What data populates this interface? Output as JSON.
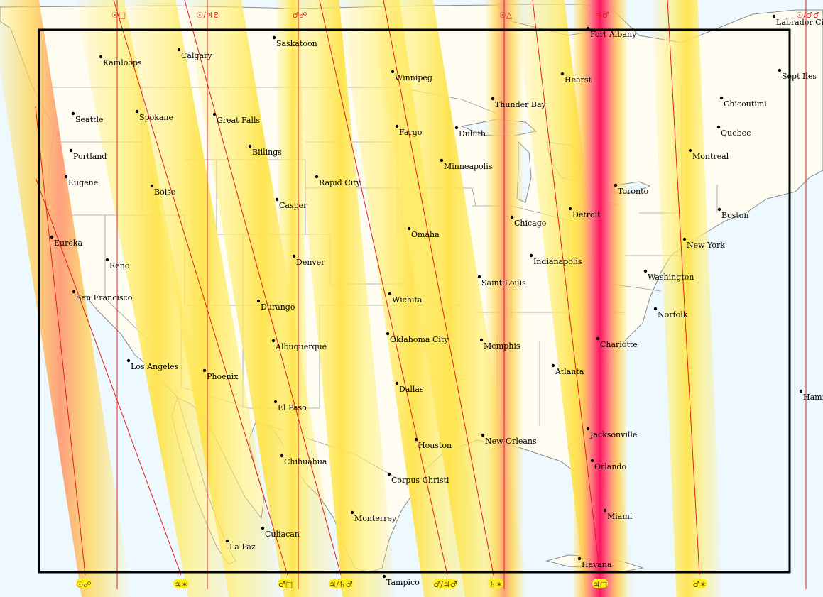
{
  "colors": {
    "background": "#ffffff",
    "ocean": "#eef8ff",
    "land": "#fffdf2",
    "border": "#8a8a8a",
    "frame": "#000000",
    "line": "#e0201f",
    "band_glow": "#ffe34a",
    "band_hot": "#ff1463",
    "badge": "#ffee22"
  },
  "top_labels": [
    {
      "id": "sun-square",
      "text": "☉□"
    },
    {
      "id": "sun-jupiter-neptune",
      "text": "☉/♃♇"
    },
    {
      "id": "mars-opposition",
      "text": "♂☍"
    },
    {
      "id": "sun-trine",
      "text": "☉△"
    },
    {
      "id": "jupiter-conjunct-mars",
      "text": "♃♂"
    },
    {
      "id": "sun-mars-combo",
      "text": "☉/♂♂"
    }
  ],
  "bottom_labels": [
    {
      "id": "sun-opposition",
      "text": "☉☍"
    },
    {
      "id": "jupiter-sextile",
      "text": "♃✶"
    },
    {
      "id": "mars-square",
      "text": "♂□"
    },
    {
      "id": "jupiter-saturn-mars",
      "text": "♃/♄♂"
    },
    {
      "id": "mars-jupiter-mars",
      "text": "♂/♃♂"
    },
    {
      "id": "saturn-sextile",
      "text": "♄✶"
    },
    {
      "id": "jupiter-square",
      "text": "♃□"
    },
    {
      "id": "mars-sextile",
      "text": "♂✶"
    }
  ],
  "cities": [
    {
      "name": "Kamloops"
    },
    {
      "name": "Calgary"
    },
    {
      "name": "Saskatoon"
    },
    {
      "name": "Fort Albany"
    },
    {
      "name": "Labrador City"
    },
    {
      "name": "Winnipeg"
    },
    {
      "name": "Hearst"
    },
    {
      "name": "Sept Iles"
    },
    {
      "name": "Thunder Bay"
    },
    {
      "name": "Chicoutimi"
    },
    {
      "name": "Seattle"
    },
    {
      "name": "Spokane"
    },
    {
      "name": "Great Falls"
    },
    {
      "name": "Fargo"
    },
    {
      "name": "Duluth"
    },
    {
      "name": "Quebec"
    },
    {
      "name": "Portland"
    },
    {
      "name": "Billings"
    },
    {
      "name": "Montreal"
    },
    {
      "name": "Minneapolis"
    },
    {
      "name": "Eugene"
    },
    {
      "name": "Boise"
    },
    {
      "name": "Rapid City"
    },
    {
      "name": "Toronto"
    },
    {
      "name": "Casper"
    },
    {
      "name": "Detroit"
    },
    {
      "name": "Boston"
    },
    {
      "name": "Chicago"
    },
    {
      "name": "Omaha"
    },
    {
      "name": "Eureka"
    },
    {
      "name": "New York"
    },
    {
      "name": "Reno"
    },
    {
      "name": "Denver"
    },
    {
      "name": "Indianapolis"
    },
    {
      "name": "Washington"
    },
    {
      "name": "Saint Louis"
    },
    {
      "name": "San Francisco"
    },
    {
      "name": "Wichita"
    },
    {
      "name": "Durango"
    },
    {
      "name": "Norfolk"
    },
    {
      "name": "Oklahoma City"
    },
    {
      "name": "Albuquerque"
    },
    {
      "name": "Memphis"
    },
    {
      "name": "Charlotte"
    },
    {
      "name": "Los Angeles"
    },
    {
      "name": "Atlanta"
    },
    {
      "name": "Phoenix"
    },
    {
      "name": "Dallas"
    },
    {
      "name": "El Paso"
    },
    {
      "name": "Hamilton"
    },
    {
      "name": "Jacksonville"
    },
    {
      "name": "Houston"
    },
    {
      "name": "New Orleans"
    },
    {
      "name": "Chihuahua"
    },
    {
      "name": "Orlando"
    },
    {
      "name": "Corpus Christi"
    },
    {
      "name": "Monterrey"
    },
    {
      "name": "Miami"
    },
    {
      "name": "Culiacan"
    },
    {
      "name": "La Paz"
    },
    {
      "name": "Havana"
    },
    {
      "name": "Tampico"
    }
  ]
}
